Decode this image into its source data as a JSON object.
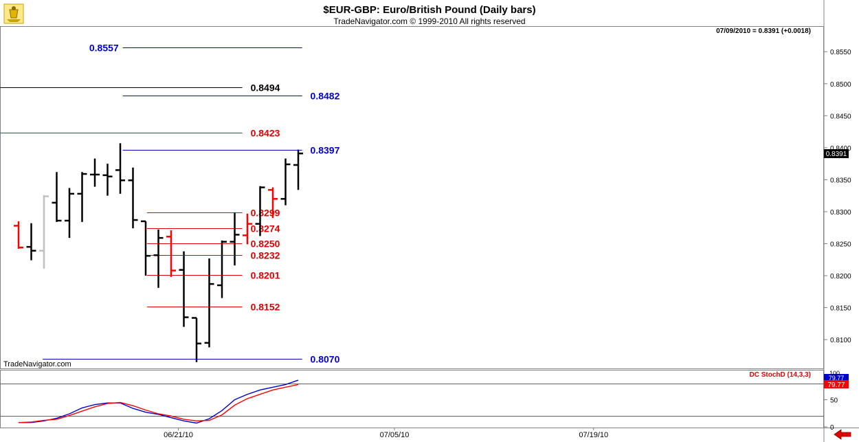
{
  "header": {
    "title": "$EUR-GBP:  Euro/British Pound  (Daily bars)",
    "subtitle": "TradeNavigator.com © 1999-2010 All rights reserved",
    "last_quote": "07/09/2010 = 0.8391 (+0.0018)",
    "watermark": "TradeNavigator.com"
  },
  "colors": {
    "up_bar": "#000000",
    "down_bar": "#ff0000",
    "neutral_bar": "#c0c0c0",
    "blue_level": "#0000cc",
    "red_level": "#e00000",
    "black_level": "#000000",
    "stoch_k": "#0000cc",
    "stoch_d": "#e00000"
  },
  "chart_data": [
    {
      "type": "ohlc",
      "title": "$EUR-GBP:  Euro/British Pound  (Daily bars)",
      "ylim": [
        0.8055,
        0.859
      ],
      "y_ticks": [
        "0.8100",
        "0.8150",
        "0.8200",
        "0.8250",
        "0.8300",
        "0.8350",
        "0.8400",
        "0.8450",
        "0.8500",
        "0.8550"
      ],
      "x_ticks": [
        "06/21/10",
        "07/05/10",
        "07/19/10"
      ],
      "last_price_label": "0.8391",
      "bars": [
        {
          "o": 0.8278,
          "h": 0.8285,
          "l": 0.8242,
          "c": 0.8244,
          "color": "red"
        },
        {
          "o": 0.8245,
          "h": 0.8282,
          "l": 0.8224,
          "c": 0.8239,
          "color": "black"
        },
        {
          "o": 0.8239,
          "h": 0.8326,
          "l": 0.8211,
          "c": 0.8324,
          "color": "gray"
        },
        {
          "o": 0.8314,
          "h": 0.8362,
          "l": 0.8284,
          "c": 0.8286,
          "color": "black"
        },
        {
          "o": 0.8286,
          "h": 0.8337,
          "l": 0.8259,
          "c": 0.8328,
          "color": "black"
        },
        {
          "o": 0.8328,
          "h": 0.8362,
          "l": 0.8284,
          "c": 0.8359,
          "color": "black"
        },
        {
          "o": 0.8358,
          "h": 0.8383,
          "l": 0.8339,
          "c": 0.8358,
          "color": "black"
        },
        {
          "o": 0.8357,
          "h": 0.8375,
          "l": 0.8325,
          "c": 0.8355,
          "color": "black"
        },
        {
          "o": 0.8365,
          "h": 0.8407,
          "l": 0.8328,
          "c": 0.8349,
          "color": "black"
        },
        {
          "o": 0.8349,
          "h": 0.8369,
          "l": 0.8274,
          "c": 0.8287,
          "color": "black"
        },
        {
          "o": 0.8285,
          "h": 0.8285,
          "l": 0.82,
          "c": 0.8231,
          "color": "black"
        },
        {
          "o": 0.8232,
          "h": 0.8272,
          "l": 0.8181,
          "c": 0.8259,
          "color": "black"
        },
        {
          "o": 0.8261,
          "h": 0.8271,
          "l": 0.8198,
          "c": 0.8208,
          "color": "red"
        },
        {
          "o": 0.8209,
          "h": 0.8238,
          "l": 0.812,
          "c": 0.8135,
          "color": "black"
        },
        {
          "o": 0.8134,
          "h": 0.8134,
          "l": 0.8065,
          "c": 0.8094,
          "color": "black"
        },
        {
          "o": 0.8095,
          "h": 0.8227,
          "l": 0.8088,
          "c": 0.8187,
          "color": "black"
        },
        {
          "o": 0.8185,
          "h": 0.8255,
          "l": 0.8165,
          "c": 0.8253,
          "color": "black"
        },
        {
          "o": 0.8253,
          "h": 0.8299,
          "l": 0.8216,
          "c": 0.8264,
          "color": "black"
        },
        {
          "o": 0.8263,
          "h": 0.8297,
          "l": 0.8249,
          "c": 0.8281,
          "color": "red"
        },
        {
          "o": 0.8281,
          "h": 0.834,
          "l": 0.8262,
          "c": 0.8338,
          "color": "black"
        },
        {
          "o": 0.8334,
          "h": 0.8338,
          "l": 0.829,
          "c": 0.832,
          "color": "red"
        },
        {
          "o": 0.832,
          "h": 0.8383,
          "l": 0.831,
          "c": 0.8374,
          "color": "black"
        },
        {
          "o": 0.8373,
          "h": 0.8397,
          "l": 0.8334,
          "c": 0.8391,
          "color": "black"
        }
      ],
      "levels": [
        {
          "value": 0.8557,
          "label": "0.8557",
          "color": "blue",
          "from": 8.2,
          "to": 22.3,
          "label_at": "left"
        },
        {
          "value": 0.8494,
          "label": "0.8494",
          "color": "black",
          "from": -1,
          "to": 17.6,
          "label_at": "right"
        },
        {
          "value": 0.8482,
          "label": "0.8482",
          "color": "blue",
          "from": 8.2,
          "to": 22.3,
          "label_at": "right"
        },
        {
          "value": 0.8423,
          "label": "0.8423",
          "color": "red",
          "from": -1,
          "to": 17.6,
          "label_at": "right"
        },
        {
          "value": 0.8397,
          "label": "0.8397",
          "color": "blue",
          "from": 8.2,
          "to": 22.3,
          "label_at": "right"
        },
        {
          "value": 0.8299,
          "label": "0.8299",
          "color": "red",
          "from": 10.1,
          "to": 17.6,
          "label_at": "right"
        },
        {
          "value": 0.8274,
          "label": "0.8274",
          "color": "red",
          "from": 10.1,
          "to": 17.6,
          "label_at": "right"
        },
        {
          "value": 0.825,
          "label": "0.8250",
          "color": "red",
          "from": 10.1,
          "to": 17.6,
          "label_at": "right"
        },
        {
          "value": 0.8232,
          "label": "0.8232",
          "color": "red",
          "from": 10.1,
          "to": 17.6,
          "label_at": "right"
        },
        {
          "value": 0.8201,
          "label": "0.8201",
          "color": "red",
          "from": 10.1,
          "to": 17.6,
          "label_at": "right"
        },
        {
          "value": 0.8152,
          "label": "0.8152",
          "color": "red",
          "from": 10.1,
          "to": 17.6,
          "label_at": "right"
        },
        {
          "value": 0.807,
          "label": "0.8070",
          "color": "blue",
          "from": 1.9,
          "to": 22.3,
          "label_at": "right"
        }
      ]
    },
    {
      "type": "line",
      "title": "DC StochD (14,3,3)",
      "ylim": [
        0,
        100
      ],
      "y_ticks": [
        "50",
        "0"
      ],
      "top_tick": "100",
      "overbought": 80,
      "oversold": 20,
      "last_values": [
        "79.77",
        "79.77"
      ],
      "series": [
        {
          "color": "blue",
          "values": [
            8,
            8,
            11,
            16,
            24,
            35,
            41,
            44,
            44,
            34,
            27,
            23,
            17,
            11,
            7,
            15,
            30,
            50,
            60,
            68,
            73,
            78,
            86
          ]
        },
        {
          "color": "red",
          "values": [
            8,
            9,
            12,
            14,
            21,
            29,
            37,
            43,
            45,
            39,
            31,
            24,
            20,
            14,
            11,
            12,
            22,
            40,
            52,
            60,
            68,
            73,
            78
          ]
        }
      ]
    }
  ],
  "footer": {
    "back_arrow_icon": "left-arrow-icon"
  }
}
